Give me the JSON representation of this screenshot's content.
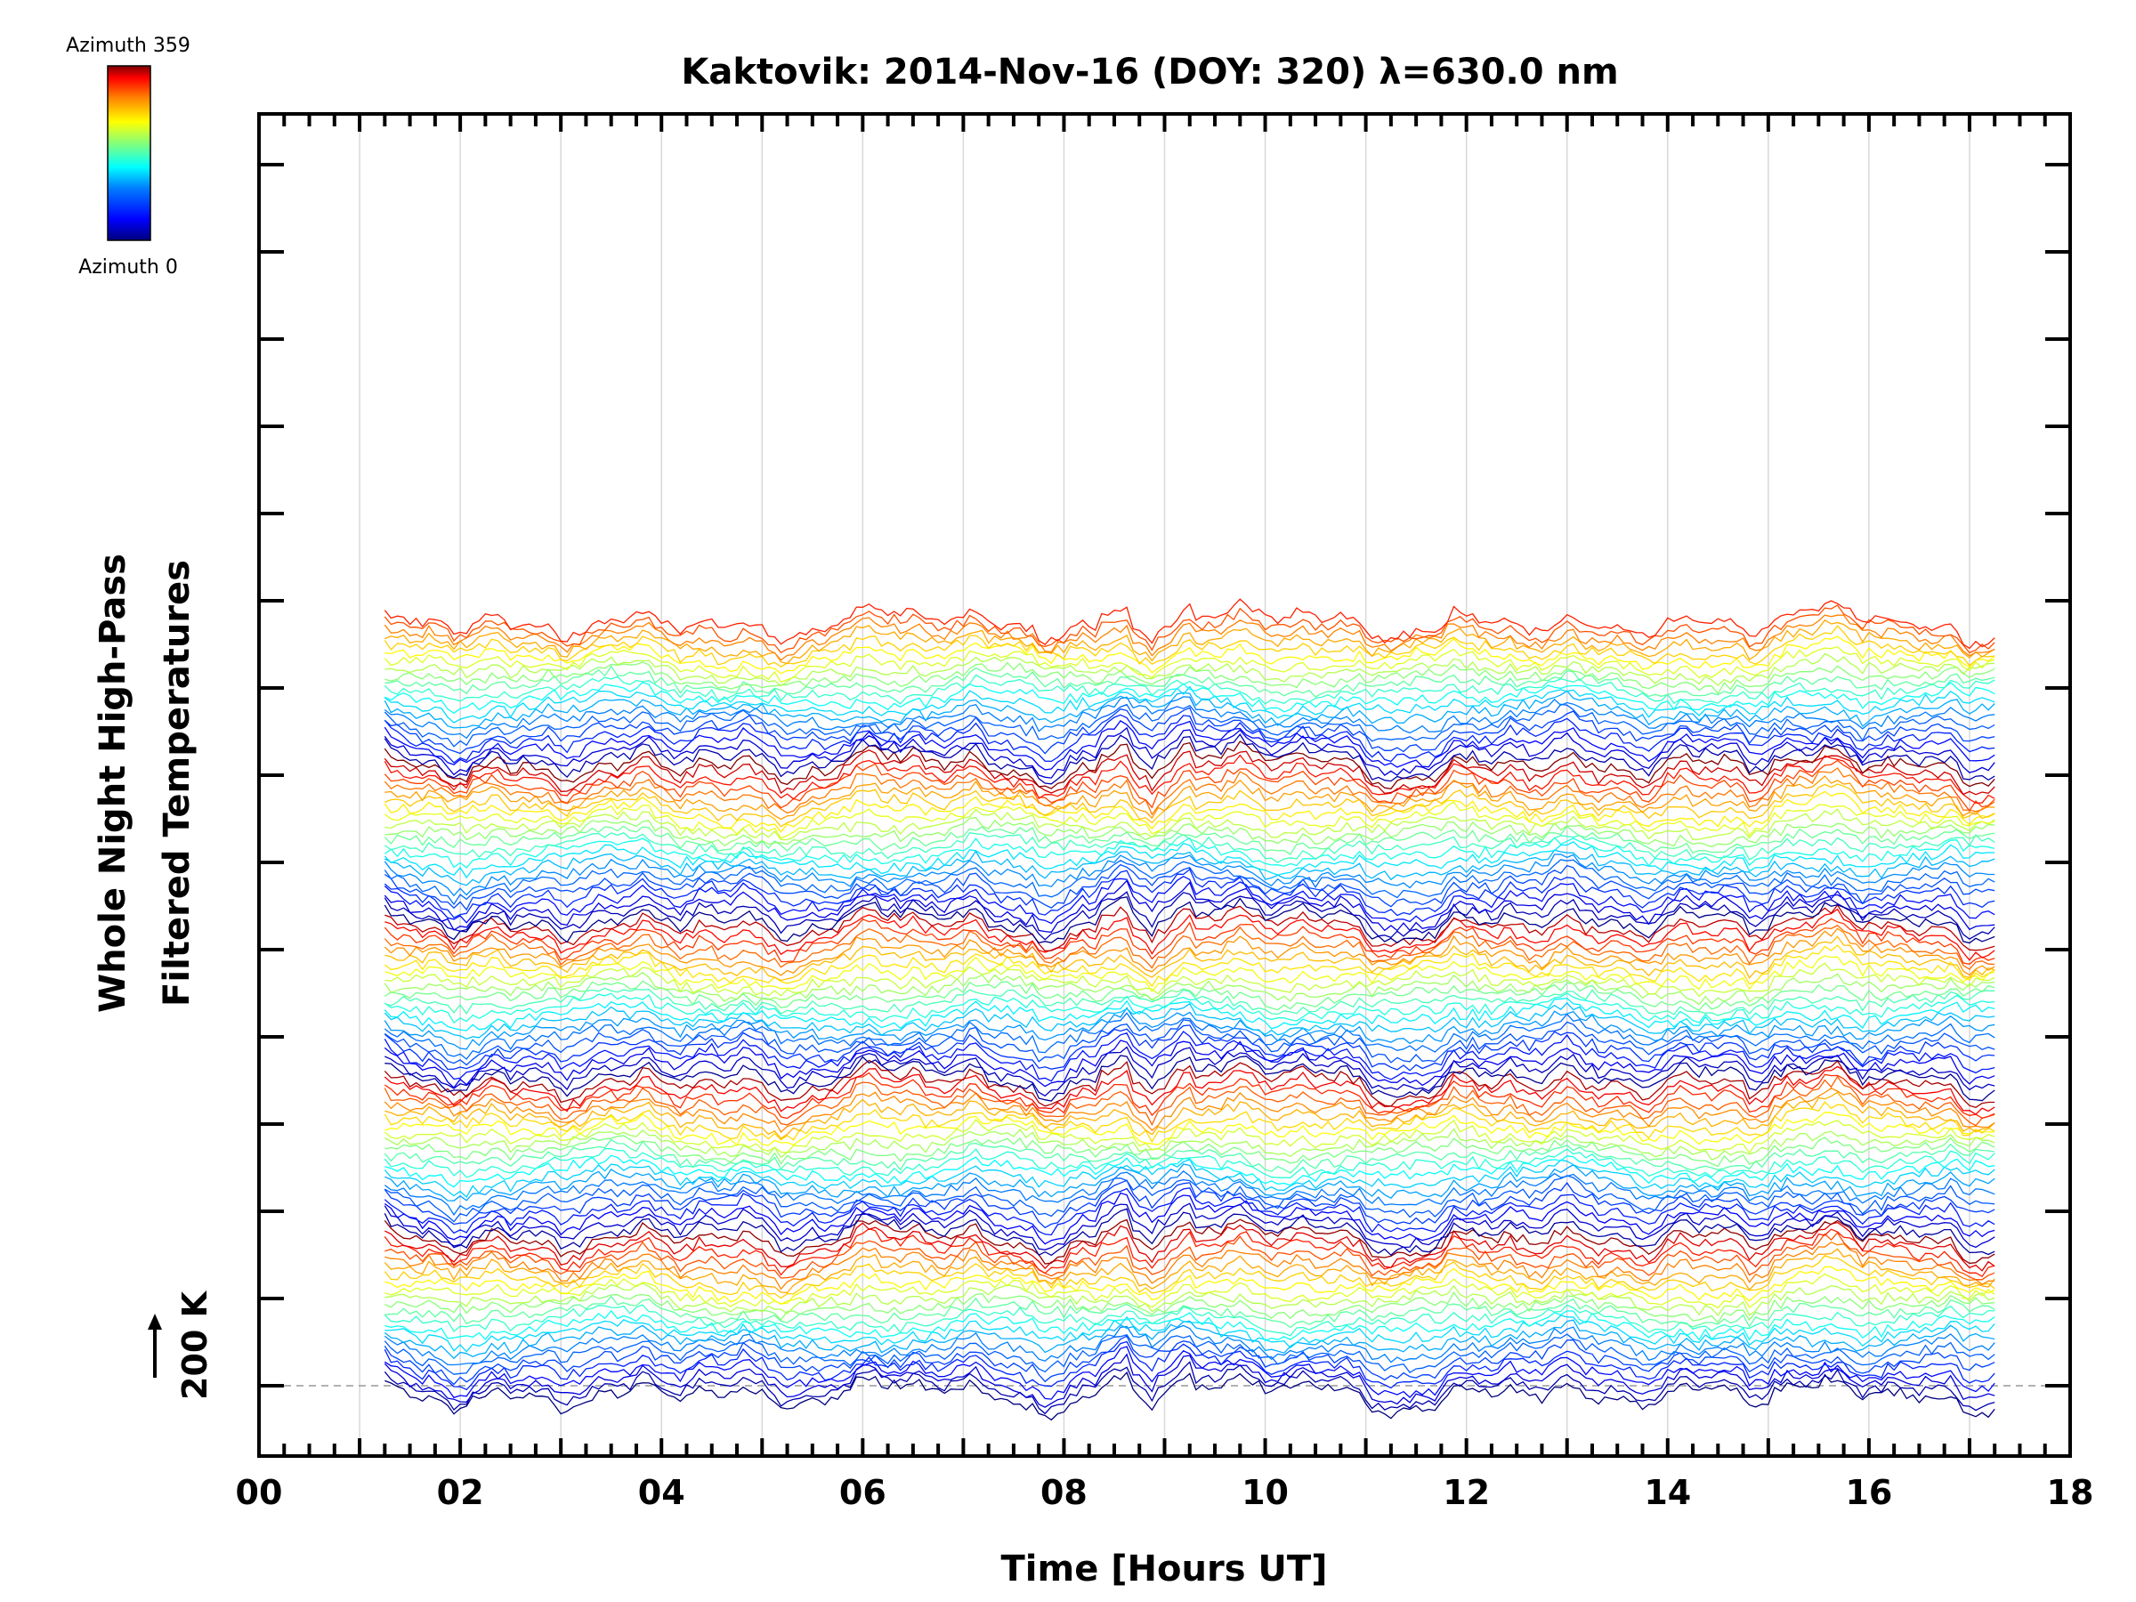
{
  "chart_data": {
    "type": "line",
    "title": "Kaktovik: 2014-Nov-16 (DOY: 320) λ=630.0 nm",
    "xlabel": "Time [Hours UT]",
    "ylabel_line1": "Whole Night High-Pass",
    "ylabel_line2": "Filtered Temperatures",
    "xlim": [
      0,
      18
    ],
    "x_ticks": [
      0,
      2,
      4,
      6,
      8,
      10,
      12,
      14,
      16,
      18
    ],
    "x_tick_labels": [
      "00",
      "02",
      "04",
      "06",
      "08",
      "10",
      "12",
      "14",
      "16",
      "18"
    ],
    "time_range": [
      1.25,
      17.25
    ],
    "time_step_hours": 0.0625,
    "num_traces": 115,
    "trace_offset_K": 200,
    "scale_bar_label": "200 K",
    "y_major_ticks": 15,
    "colorbar": {
      "top_label": "Azimuth  359",
      "bottom_label": "Azimuth  0",
      "colors": [
        "#00007f",
        "#0000ff",
        "#007fff",
        "#00ffff",
        "#7fff7f",
        "#ffff00",
        "#ff7f00",
        "#ff0000",
        "#7f0000"
      ]
    },
    "series_description": "Stacked high-pass filtered temperature traces, one per azimuth, each vertically offset by 200 K, colored by azimuth (0–359)"
  }
}
